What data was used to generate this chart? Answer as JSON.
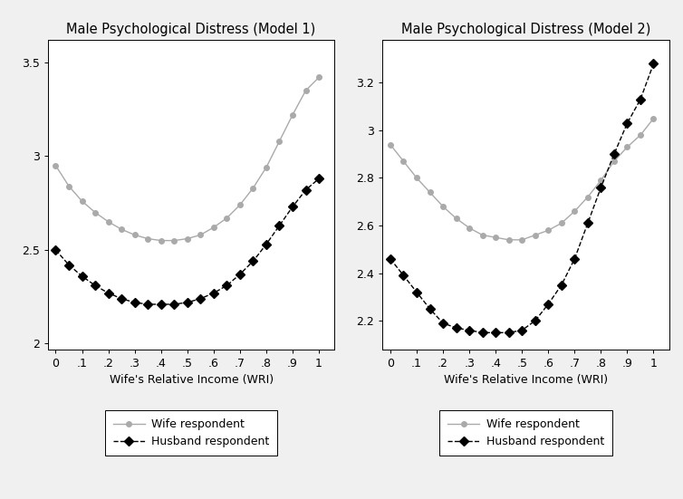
{
  "title1": "Male Psychological Distress (Model 1)",
  "title2": "Male Psychological Distress (Model 2)",
  "xlabel": "Wife's Relative Income (WRI)",
  "xticks": [
    0,
    0.1,
    0.2,
    0.3,
    0.4,
    0.5,
    0.6,
    0.7,
    0.8,
    0.9,
    1.0
  ],
  "xticklabels": [
    "0",
    ".1",
    ".2",
    ".3",
    ".4",
    ".5",
    ".6",
    ".7",
    ".8",
    ".9",
    "1"
  ],
  "m1_wife_x": [
    0.0,
    0.05,
    0.1,
    0.15,
    0.2,
    0.25,
    0.3,
    0.35,
    0.4,
    0.45,
    0.5,
    0.55,
    0.6,
    0.65,
    0.7,
    0.75,
    0.8,
    0.85,
    0.9,
    0.95,
    1.0
  ],
  "m1_wife_y": [
    2.95,
    2.84,
    2.76,
    2.7,
    2.65,
    2.61,
    2.58,
    2.56,
    2.55,
    2.55,
    2.56,
    2.58,
    2.62,
    2.67,
    2.74,
    2.83,
    2.94,
    3.08,
    3.22,
    3.35,
    3.42
  ],
  "m1_husb_x": [
    0.0,
    0.05,
    0.1,
    0.15,
    0.2,
    0.25,
    0.3,
    0.35,
    0.4,
    0.45,
    0.5,
    0.55,
    0.6,
    0.65,
    0.7,
    0.75,
    0.8,
    0.85,
    0.9,
    0.95,
    1.0
  ],
  "m1_husb_y": [
    2.5,
    2.42,
    2.36,
    2.31,
    2.27,
    2.24,
    2.22,
    2.21,
    2.21,
    2.21,
    2.22,
    2.24,
    2.27,
    2.31,
    2.37,
    2.44,
    2.53,
    2.63,
    2.73,
    2.82,
    2.88
  ],
  "m1_ylim": [
    1.97,
    3.62
  ],
  "m1_yticks": [
    2.0,
    2.5,
    3.0,
    3.5
  ],
  "m1_yticklabels": [
    "2",
    "2.5",
    "3",
    "3.5"
  ],
  "m2_wife_x": [
    0.0,
    0.05,
    0.1,
    0.15,
    0.2,
    0.25,
    0.3,
    0.35,
    0.4,
    0.45,
    0.5,
    0.55,
    0.6,
    0.65,
    0.7,
    0.75,
    0.8,
    0.85,
    0.9,
    0.95,
    1.0
  ],
  "m2_wife_y": [
    2.94,
    2.87,
    2.8,
    2.74,
    2.68,
    2.63,
    2.59,
    2.56,
    2.55,
    2.54,
    2.54,
    2.56,
    2.58,
    2.61,
    2.66,
    2.72,
    2.79,
    2.87,
    2.93,
    2.98,
    3.05
  ],
  "m2_husb_x": [
    0.0,
    0.05,
    0.1,
    0.15,
    0.2,
    0.25,
    0.3,
    0.35,
    0.4,
    0.45,
    0.5,
    0.55,
    0.6,
    0.65,
    0.7,
    0.75,
    0.8,
    0.85,
    0.9,
    0.95,
    1.0
  ],
  "m2_husb_y": [
    2.46,
    2.39,
    2.32,
    2.25,
    2.19,
    2.17,
    2.16,
    2.15,
    2.15,
    2.15,
    2.16,
    2.2,
    2.27,
    2.35,
    2.46,
    2.61,
    2.76,
    2.9,
    3.03,
    3.13,
    3.28
  ],
  "m2_ylim": [
    2.08,
    3.38
  ],
  "m2_yticks": [
    2.2,
    2.4,
    2.6,
    2.8,
    3.0,
    3.2
  ],
  "m2_yticklabels": [
    "2.2",
    "2.4",
    "2.6",
    "2.8",
    "3",
    "3.2"
  ],
  "wife_color": "#aaaaaa",
  "husb_color": "#000000",
  "bg_color": "#f0f0f0",
  "plot_bg": "#ffffff",
  "legend_wife": "Wife respondent",
  "legend_husb": "Husband respondent",
  "title_fontsize": 10.5,
  "tick_fontsize": 9,
  "xlabel_fontsize": 9,
  "legend_fontsize": 9
}
